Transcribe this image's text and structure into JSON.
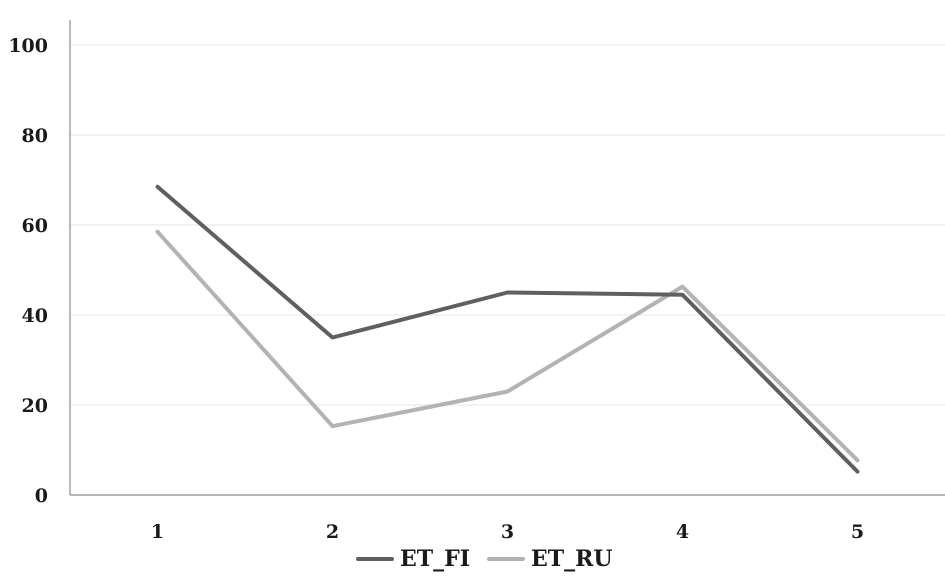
{
  "chart_data": {
    "type": "line",
    "title": "",
    "xlabel": "",
    "ylabel": "",
    "categories": [
      "1",
      "2",
      "3",
      "4",
      "5"
    ],
    "ylim": [
      0,
      100
    ],
    "yticks": [
      0,
      20,
      40,
      60,
      80,
      100
    ],
    "grid": "horizontal",
    "legend": "bottom-center",
    "series": [
      {
        "name": "ET_FI",
        "color": "#5f5f5f",
        "values": [
          68.5,
          35,
          45,
          44.5,
          5.2
        ]
      },
      {
        "name": "ET_RU",
        "color": "#b3b3b3",
        "values": [
          58.5,
          15.3,
          23,
          46.3,
          7.7
        ]
      }
    ]
  }
}
